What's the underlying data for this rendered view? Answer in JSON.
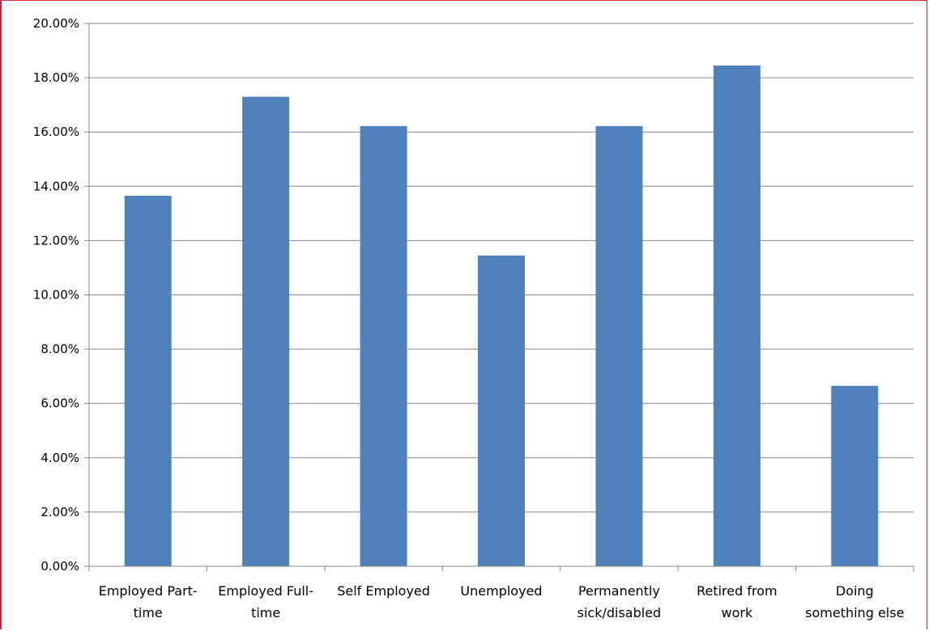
{
  "chart_data": {
    "type": "bar",
    "title": "",
    "xlabel": "",
    "ylabel": "",
    "ylim": [
      0,
      0.2
    ],
    "ytick_step": 0.02,
    "ytick_labels": [
      "0.00%",
      "2.00%",
      "4.00%",
      "6.00%",
      "8.00%",
      "10.00%",
      "12.00%",
      "14.00%",
      "16.00%",
      "18.00%",
      "20.00%"
    ],
    "grid": true,
    "legend": "none",
    "bar_color": "#4f81bd",
    "grid_color": "#868686",
    "categories": [
      [
        "Employed Part-",
        "time"
      ],
      [
        "Employed Full-",
        "time"
      ],
      [
        "Self Employed"
      ],
      [
        "Unemployed"
      ],
      [
        "Permanently",
        "sick/disabled"
      ],
      [
        "Retired from",
        "work"
      ],
      [
        "Doing",
        "something else"
      ]
    ],
    "values": [
      0.1365,
      0.173,
      0.1622,
      0.1145,
      0.1622,
      0.1845,
      0.0665
    ]
  }
}
